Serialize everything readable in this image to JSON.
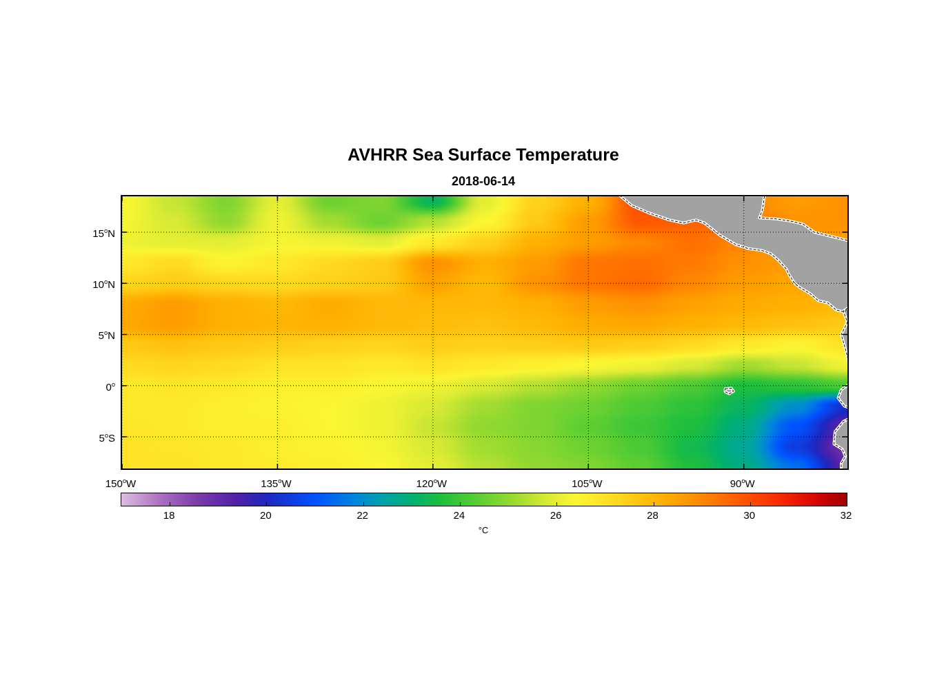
{
  "figure": {
    "title": "AVHRR Sea Surface Temperature",
    "subtitle": "2018-06-14"
  },
  "axes": {
    "degree_symbol": "o",
    "lat_ticks": [
      {
        "text": "15",
        "hem": "N",
        "value": 15
      },
      {
        "text": "10",
        "hem": "N",
        "value": 10
      },
      {
        "text": "5",
        "hem": "N",
        "value": 5
      },
      {
        "text": "0",
        "hem": "",
        "value": 0
      },
      {
        "text": "5",
        "hem": "S",
        "value": -5
      }
    ],
    "lon_ticks": [
      {
        "text": "150",
        "hem": "W",
        "value": -150
      },
      {
        "text": "135",
        "hem": "W",
        "value": -135
      },
      {
        "text": "120",
        "hem": "W",
        "value": -120
      },
      {
        "text": "105",
        "hem": "W",
        "value": -105
      },
      {
        "text": "90",
        "hem": "W",
        "value": -90
      }
    ]
  },
  "colorbar": {
    "min": 17,
    "max": 32,
    "ticks": [
      18,
      20,
      22,
      24,
      26,
      28,
      30,
      32
    ],
    "unit": "°C"
  },
  "chart_data": {
    "type": "heatmap",
    "title": "AVHRR Sea Surface Temperature",
    "date": "2018-06-14",
    "units": "°C",
    "lon": [
      -150,
      -145,
      -140,
      -135,
      -130,
      -125,
      -120,
      -115,
      -110,
      -105,
      -100,
      -95,
      -90,
      -85,
      -80
    ],
    "lat": [
      18,
      16,
      14,
      12,
      10,
      8,
      6,
      4,
      2,
      0,
      -2,
      -4,
      -6,
      -8
    ],
    "sst": [
      [
        26.4,
        25.6,
        24.8,
        26.0,
        24.6,
        24.8,
        23.2,
        26.0,
        27.4,
        28.2,
        30.0,
        29.6,
        29.0,
        28.6,
        28.8
      ],
      [
        26.3,
        25.8,
        25.0,
        26.2,
        25.2,
        24.6,
        25.4,
        26.4,
        27.6,
        28.6,
        29.8,
        29.6,
        29.2,
        28.8,
        28.8
      ],
      [
        26.2,
        26.0,
        26.0,
        26.3,
        26.2,
        26.0,
        26.8,
        27.4,
        28.2,
        28.6,
        29.0,
        29.4,
        29.0,
        28.6,
        28.5
      ],
      [
        26.8,
        27.2,
        26.5,
        26.8,
        27.2,
        27.5,
        28.8,
        28.2,
        28.6,
        29.3,
        29.4,
        29.2,
        28.8,
        28.6,
        28.4
      ],
      [
        27.3,
        27.5,
        27.3,
        27.2,
        27.4,
        27.6,
        28.5,
        28.0,
        28.8,
        29.3,
        29.5,
        29.0,
        28.6,
        28.4,
        28.2
      ],
      [
        28.3,
        28.6,
        28.2,
        28.0,
        28.3,
        28.0,
        28.0,
        28.0,
        28.2,
        28.6,
        28.8,
        28.5,
        28.3,
        28.2,
        28.0
      ],
      [
        28.4,
        28.6,
        28.2,
        28.1,
        28.2,
        28.0,
        27.9,
        27.8,
        28.0,
        28.3,
        28.4,
        28.2,
        28.0,
        27.8,
        27.6
      ],
      [
        27.6,
        27.8,
        27.6,
        27.5,
        27.4,
        27.3,
        27.5,
        27.4,
        27.5,
        27.6,
        27.5,
        27.2,
        26.8,
        26.5,
        27.0
      ],
      [
        27.2,
        27.3,
        27.2,
        27.0,
        27.0,
        26.8,
        27.0,
        26.8,
        26.6,
        26.4,
        26.2,
        25.8,
        25.2,
        25.6,
        26.2
      ],
      [
        26.8,
        26.9,
        26.8,
        26.6,
        26.6,
        26.4,
        26.2,
        25.8,
        25.4,
        25.0,
        24.6,
        24.2,
        23.6,
        23.8,
        24.2
      ],
      [
        26.8,
        26.8,
        26.6,
        26.5,
        26.4,
        26.2,
        25.8,
        25.2,
        24.8,
        24.6,
        24.2,
        23.8,
        23.2,
        22.0,
        20.2
      ],
      [
        26.9,
        26.8,
        26.6,
        26.6,
        26.4,
        26.2,
        25.6,
        25.0,
        24.8,
        24.4,
        24.0,
        23.6,
        22.8,
        21.0,
        19.2
      ],
      [
        27.0,
        26.9,
        26.8,
        26.6,
        26.5,
        26.3,
        25.8,
        25.2,
        24.9,
        24.6,
        24.2,
        23.4,
        22.6,
        20.5,
        18.8
      ],
      [
        27.0,
        27.0,
        26.8,
        26.7,
        26.6,
        26.4,
        26.0,
        25.4,
        25.0,
        24.8,
        24.4,
        23.6,
        22.8,
        21.5,
        19.2
      ]
    ],
    "extent": {
      "lon_min": -150,
      "lon_max": -80,
      "lat_min": -8.1,
      "lat_max": 18.5
    },
    "colormap": [
      {
        "v": 17.0,
        "rgb": [
          221,
          190,
          225
        ]
      },
      {
        "v": 17.8,
        "rgb": [
          172,
          112,
          192
        ]
      },
      {
        "v": 18.6,
        "rgb": [
          122,
          58,
          172
        ]
      },
      {
        "v": 19.4,
        "rgb": [
          80,
          32,
          168
        ]
      },
      {
        "v": 20.0,
        "rgb": [
          30,
          40,
          192
        ]
      },
      {
        "v": 21.0,
        "rgb": [
          0,
          82,
          255
        ]
      },
      {
        "v": 21.8,
        "rgb": [
          0,
          132,
          222
        ]
      },
      {
        "v": 22.4,
        "rgb": [
          0,
          162,
          170
        ]
      },
      {
        "v": 23.0,
        "rgb": [
          0,
          176,
          112
        ]
      },
      {
        "v": 23.6,
        "rgb": [
          30,
          190,
          62
        ]
      },
      {
        "v": 24.4,
        "rgb": [
          92,
          206,
          50
        ]
      },
      {
        "v": 25.2,
        "rgb": [
          162,
          220,
          48
        ]
      },
      {
        "v": 25.8,
        "rgb": [
          216,
          234,
          52
        ]
      },
      {
        "v": 26.4,
        "rgb": [
          250,
          246,
          50
        ]
      },
      {
        "v": 27.0,
        "rgb": [
          255,
          226,
          38
        ]
      },
      {
        "v": 27.6,
        "rgb": [
          255,
          201,
          20
        ]
      },
      {
        "v": 28.2,
        "rgb": [
          255,
          176,
          0
        ]
      },
      {
        "v": 28.8,
        "rgb": [
          255,
          146,
          0
        ]
      },
      {
        "v": 29.4,
        "rgb": [
          255,
          112,
          0
        ]
      },
      {
        "v": 30.0,
        "rgb": [
          255,
          76,
          0
        ]
      },
      {
        "v": 30.6,
        "rgb": [
          248,
          42,
          0
        ]
      },
      {
        "v": 31.2,
        "rgb": [
          224,
          12,
          0
        ]
      },
      {
        "v": 31.6,
        "rgb": [
          196,
          0,
          0
        ]
      },
      {
        "v": 32.0,
        "rgb": [
          158,
          0,
          0
        ]
      }
    ],
    "land_color": "#a2a2a2",
    "coast_halo_color": "#ffffff",
    "land": {
      "polygons": [
        {
          "name": "central-america",
          "points": [
            [
              -102.0,
              18.6
            ],
            [
              -100.8,
              17.6
            ],
            [
              -99.2,
              16.9
            ],
            [
              -97.2,
              16.2
            ],
            [
              -95.8,
              15.9
            ],
            [
              -94.6,
              16.2
            ],
            [
              -93.8,
              15.9
            ],
            [
              -92.3,
              14.7
            ],
            [
              -90.8,
              13.8
            ],
            [
              -89.6,
              13.4
            ],
            [
              -88.2,
              13.2
            ],
            [
              -87.4,
              12.9
            ],
            [
              -86.7,
              12.3
            ],
            [
              -85.9,
              11.4
            ],
            [
              -85.6,
              10.8
            ],
            [
              -85.1,
              10.0
            ],
            [
              -84.6,
              9.6
            ],
            [
              -83.6,
              9.0
            ],
            [
              -82.8,
              8.3
            ],
            [
              -81.9,
              8.1
            ],
            [
              -81.1,
              7.4
            ],
            [
              -80.3,
              7.2
            ],
            [
              -79.0,
              8.4
            ],
            [
              -78.5,
              9.2
            ],
            [
              -78.5,
              13.2
            ],
            [
              -80.0,
              14.2
            ],
            [
              -82.0,
              14.7
            ],
            [
              -83.2,
              15.0
            ],
            [
              -84.3,
              15.8
            ],
            [
              -85.6,
              16.1
            ],
            [
              -86.9,
              16.3
            ],
            [
              -88.5,
              16.4
            ],
            [
              -88.2,
              17.2
            ],
            [
              -88.0,
              18.6
            ]
          ]
        },
        {
          "name": "colombia-coast",
          "points": [
            [
              -79.3,
              8.0
            ],
            [
              -80.4,
              7.3
            ],
            [
              -80.0,
              6.2
            ],
            [
              -80.6,
              5.0
            ],
            [
              -80.2,
              3.6
            ],
            [
              -79.9,
              2.4
            ],
            [
              -78.8,
              2.0
            ],
            [
              -78.8,
              7.6
            ]
          ]
        },
        {
          "name": "ecuador-coast",
          "points": [
            [
              -79.3,
              0.5
            ],
            [
              -80.6,
              -0.4
            ],
            [
              -80.9,
              -1.2
            ],
            [
              -80.3,
              -2.0
            ],
            [
              -79.2,
              -2.4
            ]
          ]
        },
        {
          "name": "peru-coast",
          "points": [
            [
              -79.2,
              -2.9
            ],
            [
              -80.4,
              -3.5
            ],
            [
              -81.2,
              -4.5
            ],
            [
              -81.3,
              -5.7
            ],
            [
              -80.5,
              -6.2
            ],
            [
              -80.2,
              -6.9
            ],
            [
              -80.6,
              -7.6
            ],
            [
              -80.6,
              -8.4
            ],
            [
              -78.8,
              -8.4
            ]
          ]
        },
        {
          "name": "galapagos-islands",
          "points": [
            [
              -91.8,
              -0.3
            ],
            [
              -91.2,
              -0.25
            ],
            [
              -91.0,
              -0.55
            ],
            [
              -91.4,
              -0.8
            ],
            [
              -91.8,
              -0.6
            ]
          ]
        }
      ]
    },
    "gridlines": {
      "lat": [
        15,
        10,
        5,
        0,
        -5
      ],
      "lon": [
        -150,
        -135,
        -120,
        -105,
        -90
      ]
    }
  }
}
